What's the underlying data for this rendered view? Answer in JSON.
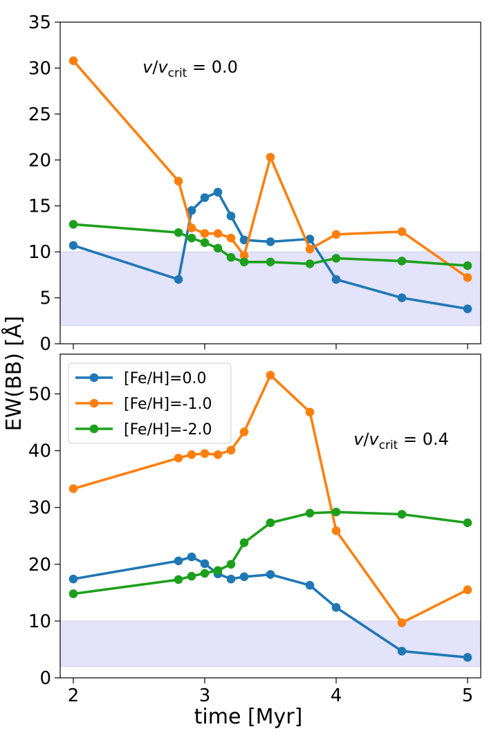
{
  "figure": {
    "xlabel": "time [Myr]",
    "ylabel": "EW(BB) [Å]",
    "legend_placement": "upper-left of bottom panel"
  },
  "series_meta": [
    {
      "name": "[Fe/H]=0.0",
      "color": "#1f77b4"
    },
    {
      "name": "[Fe/H]=-1.0",
      "color": "#ff7f0e"
    },
    {
      "name": "[Fe/H]=-2.0",
      "color": "#1ca01c"
    }
  ],
  "chart_data": [
    {
      "type": "line",
      "annotation": "v/v_crit = 0.0",
      "xlim": [
        1.9,
        5.1
      ],
      "ylim": [
        0,
        35
      ],
      "xticks": [
        2,
        3,
        4,
        5
      ],
      "yticks": [
        0,
        5,
        10,
        15,
        20,
        25,
        30,
        35
      ],
      "show_xtick_labels": false,
      "shaded_band": [
        2,
        10
      ],
      "series": [
        {
          "name": "[Fe/H]=0.0",
          "x": [
            2.0,
            2.8,
            2.9,
            3.0,
            3.1,
            3.2,
            3.3,
            3.5,
            3.8,
            4.0,
            4.5,
            5.0
          ],
          "y": [
            10.7,
            7.0,
            14.5,
            15.9,
            16.5,
            13.9,
            11.3,
            11.1,
            11.4,
            7.0,
            5.0,
            3.8
          ]
        },
        {
          "name": "[Fe/H]=-1.0",
          "x": [
            2.0,
            2.8,
            2.9,
            3.0,
            3.1,
            3.2,
            3.3,
            3.5,
            3.8,
            4.0,
            4.5,
            5.0
          ],
          "y": [
            30.8,
            17.7,
            12.6,
            12.0,
            12.0,
            11.5,
            9.6,
            20.3,
            10.3,
            11.9,
            12.2,
            7.2
          ]
        },
        {
          "name": "[Fe/H]=-2.0",
          "x": [
            2.0,
            2.8,
            2.9,
            3.0,
            3.1,
            3.2,
            3.3,
            3.5,
            3.8,
            4.0,
            4.5,
            5.0
          ],
          "y": [
            13.0,
            12.1,
            11.5,
            11.0,
            10.4,
            9.4,
            8.9,
            8.9,
            8.7,
            9.3,
            9.0,
            8.5
          ]
        }
      ]
    },
    {
      "type": "line",
      "annotation": "v/v_crit = 0.4",
      "xlim": [
        1.9,
        5.1
      ],
      "ylim": [
        0,
        57
      ],
      "xticks": [
        2,
        3,
        4,
        5
      ],
      "yticks": [
        0,
        10,
        20,
        30,
        40,
        50
      ],
      "show_xtick_labels": true,
      "shaded_band": [
        2,
        10
      ],
      "series": [
        {
          "name": "[Fe/H]=0.0",
          "x": [
            2.0,
            2.8,
            2.9,
            3.0,
            3.1,
            3.2,
            3.3,
            3.5,
            3.8,
            4.0,
            4.5,
            5.0
          ],
          "y": [
            17.4,
            20.6,
            21.3,
            20.1,
            18.3,
            17.4,
            17.8,
            18.2,
            16.3,
            12.4,
            4.7,
            3.6
          ]
        },
        {
          "name": "[Fe/H]=-1.0",
          "x": [
            2.0,
            2.8,
            2.9,
            3.0,
            3.1,
            3.2,
            3.3,
            3.5,
            3.8,
            4.0,
            4.5,
            5.0
          ],
          "y": [
            33.3,
            38.7,
            39.3,
            39.5,
            39.3,
            40.1,
            43.3,
            53.3,
            46.8,
            25.9,
            9.7,
            15.5
          ]
        },
        {
          "name": "[Fe/H]=-2.0",
          "x": [
            2.0,
            2.8,
            2.9,
            3.0,
            3.1,
            3.2,
            3.3,
            3.5,
            3.8,
            4.0,
            4.5,
            5.0
          ],
          "y": [
            14.8,
            17.3,
            17.9,
            18.4,
            18.9,
            20.0,
            23.8,
            27.3,
            29.0,
            29.2,
            28.8,
            27.3
          ]
        }
      ]
    }
  ]
}
